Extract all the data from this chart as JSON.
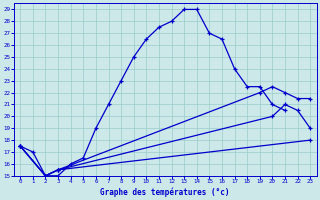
{
  "xlabel": "Graphe des températures (°c)",
  "background_color": "#cce8e8",
  "line_color": "#0000cc",
  "grid_color": "#99cccc",
  "xlim": [
    -0.5,
    23.5
  ],
  "ylim": [
    15,
    29.5
  ],
  "yticks": [
    15,
    16,
    17,
    18,
    19,
    20,
    21,
    22,
    23,
    24,
    25,
    26,
    27,
    28,
    29
  ],
  "xticks": [
    0,
    1,
    2,
    3,
    4,
    5,
    6,
    7,
    8,
    9,
    10,
    11,
    12,
    13,
    14,
    15,
    16,
    17,
    18,
    19,
    20,
    21,
    22,
    23
  ],
  "curve1_x": [
    0,
    1,
    2,
    3,
    4,
    5,
    6,
    7,
    8,
    9,
    10,
    11,
    12,
    13,
    14,
    15,
    16,
    17,
    18,
    19,
    20,
    21
  ],
  "curve1_y": [
    17.5,
    17.0,
    15.0,
    15.0,
    16.0,
    16.5,
    19.0,
    21.0,
    23.0,
    25.0,
    26.5,
    27.5,
    28.0,
    29.0,
    29.0,
    27.0,
    26.5,
    24.0,
    22.5,
    22.5,
    21.0,
    20.5
  ],
  "curve2_x": [
    0,
    2,
    3,
    23
  ],
  "curve2_y": [
    17.5,
    15.0,
    15.5,
    18.0
  ],
  "curve3_x": [
    0,
    2,
    3,
    20,
    21,
    22,
    23
  ],
  "curve3_y": [
    17.5,
    15.0,
    15.5,
    20.0,
    21.0,
    20.5,
    19.0
  ],
  "curve4_x": [
    0,
    2,
    3,
    19,
    20,
    21,
    22,
    23
  ],
  "curve4_y": [
    17.5,
    15.0,
    15.5,
    22.0,
    22.5,
    22.0,
    21.5,
    21.5
  ]
}
